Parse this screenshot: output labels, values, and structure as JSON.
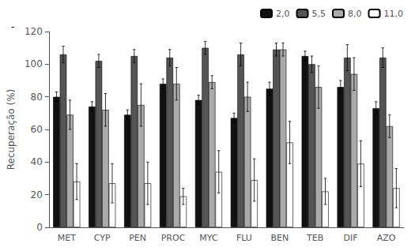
{
  "chart_data": {
    "type": "bar",
    "categories": [
      "MET",
      "CYP",
      "PEN",
      "PROC",
      "MYC",
      "FLU",
      "BEN",
      "TEB",
      "DIF",
      "AZO"
    ],
    "series": [
      {
        "name": "2,0",
        "color": "#111111",
        "values": [
          80,
          74,
          69,
          88,
          78,
          67,
          85,
          105,
          86,
          73
        ],
        "errors": [
          3,
          3,
          3,
          3,
          3,
          3,
          4,
          3,
          4,
          4
        ]
      },
      {
        "name": "5,5",
        "color": "#555555",
        "values": [
          106,
          102,
          105,
          104,
          110,
          106,
          109,
          100,
          104,
          104
        ],
        "errors": [
          5,
          4,
          4,
          5,
          4,
          7,
          4,
          5,
          8,
          6
        ]
      },
      {
        "name": "8,0",
        "color": "#aaaaaa",
        "values": [
          69,
          72,
          75,
          88,
          89,
          80,
          109,
          86,
          94,
          62
        ],
        "errors": [
          9,
          10,
          13,
          10,
          4,
          9,
          4,
          13,
          10,
          7
        ]
      },
      {
        "name": "11,0",
        "color": "#ffffff",
        "values": [
          28,
          27,
          27,
          19,
          34,
          29,
          52,
          22,
          39,
          24
        ],
        "errors": [
          11,
          12,
          13,
          5,
          13,
          13,
          13,
          8,
          14,
          12
        ]
      }
    ],
    "ylabel": "Recuperação (%)",
    "ylim": [
      0,
      120
    ],
    "yticks": [
      0,
      20,
      40,
      60,
      80,
      100,
      120
    ],
    "legend": "upper right",
    "grid": false,
    "annotations": [
      "-"
    ]
  }
}
